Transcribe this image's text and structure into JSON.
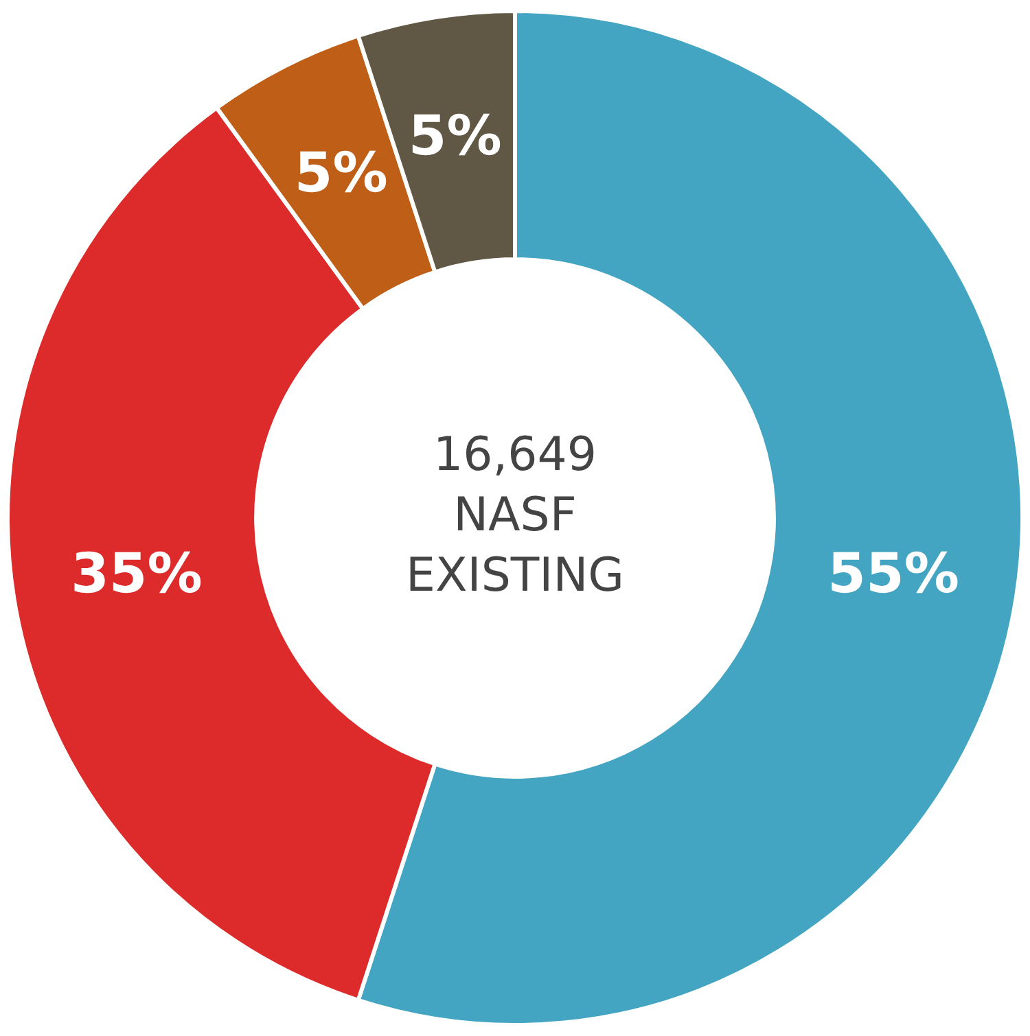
{
  "chart_data": {
    "type": "donut",
    "categories": [
      null,
      null,
      null,
      null
    ],
    "values": [
      55,
      35,
      5,
      5
    ],
    "colors": [
      "#43a5c1",
      "#dc2b2a",
      "#bf5e16",
      "#605845"
    ],
    "value_labels": [
      "55%",
      "35%",
      "5%",
      "5%"
    ],
    "annotations": [
      "16,649",
      "NASF",
      "EXISTING"
    ],
    "legend": false
  }
}
